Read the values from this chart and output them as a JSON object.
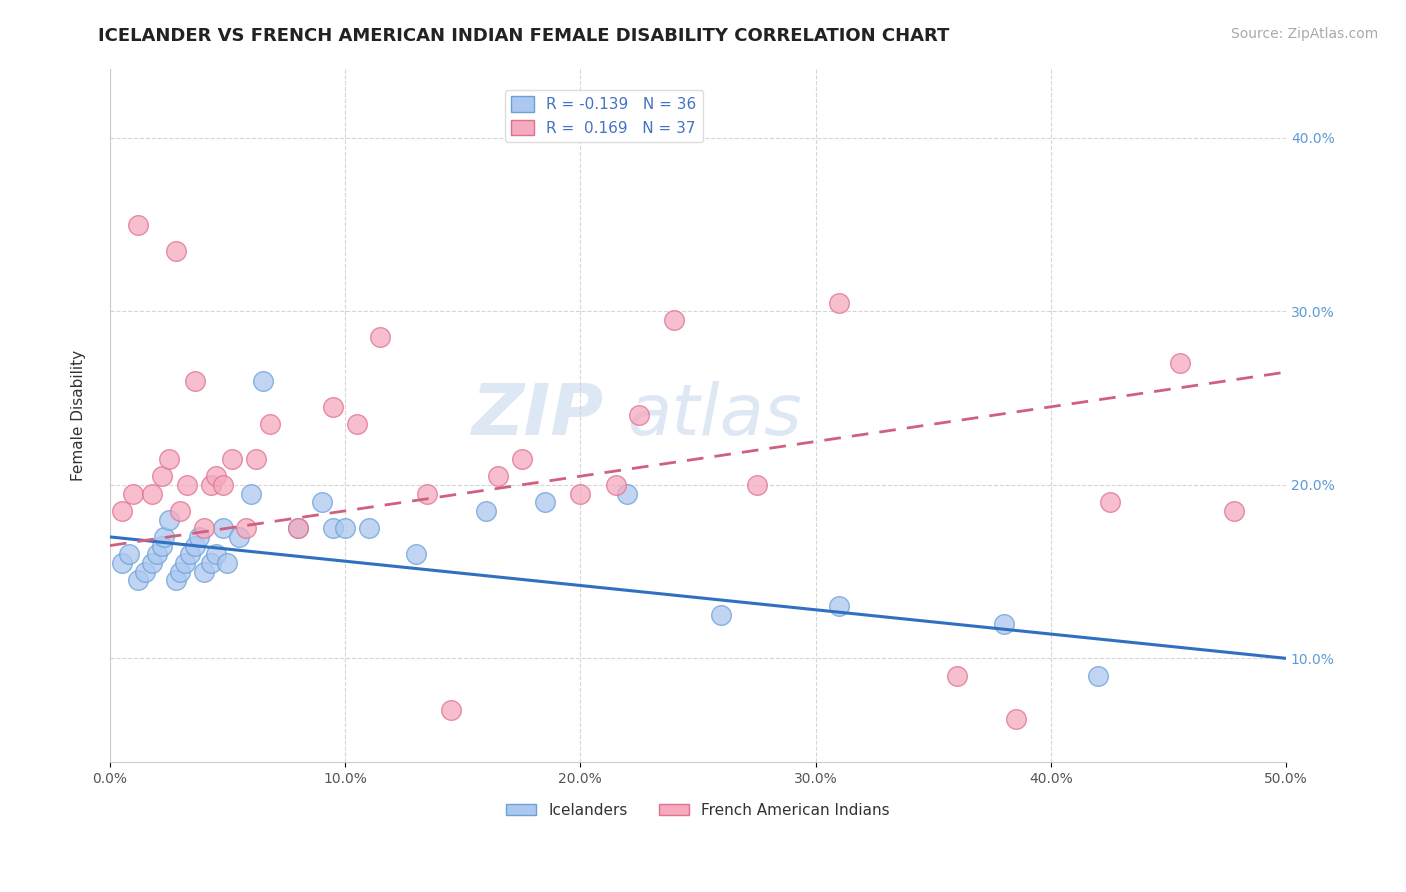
{
  "title": "ICELANDER VS FRENCH AMERICAN INDIAN FEMALE DISABILITY CORRELATION CHART",
  "source": "Source: ZipAtlas.com",
  "ylabel": "Female Disability",
  "xlim": [
    0.0,
    0.5
  ],
  "ylim": [
    0.04,
    0.44
  ],
  "xticks": [
    0.0,
    0.1,
    0.2,
    0.3,
    0.4,
    0.5
  ],
  "xtick_labels": [
    "0.0%",
    "10.0%",
    "20.0%",
    "30.0%",
    "40.0%",
    "50.0%"
  ],
  "yticks": [
    0.1,
    0.2,
    0.3,
    0.4
  ],
  "ytick_labels": [
    "10.0%",
    "20.0%",
    "30.0%",
    "40.0%"
  ],
  "legend_r1": "R = -0.139",
  "legend_n1": "N = 36",
  "legend_r2": "R =  0.169",
  "legend_n2": "N = 37",
  "icelander_color": "#adc8f0",
  "french_color": "#f5aabe",
  "icelander_edge_color": "#6aa0d8",
  "french_edge_color": "#e07090",
  "icelander_line_color": "#3070c0",
  "french_line_color": "#d06080",
  "background_color": "#ffffff",
  "grid_color": "#cccccc",
  "icelander_scatter_x": [
    0.005,
    0.008,
    0.012,
    0.015,
    0.018,
    0.02,
    0.022,
    0.023,
    0.025,
    0.028,
    0.03,
    0.032,
    0.034,
    0.036,
    0.038,
    0.04,
    0.043,
    0.045,
    0.048,
    0.05,
    0.055,
    0.06,
    0.065,
    0.08,
    0.09,
    0.095,
    0.1,
    0.11,
    0.13,
    0.16,
    0.185,
    0.22,
    0.26,
    0.31,
    0.38,
    0.42
  ],
  "icelander_scatter_y": [
    0.155,
    0.16,
    0.145,
    0.15,
    0.155,
    0.16,
    0.165,
    0.17,
    0.18,
    0.145,
    0.15,
    0.155,
    0.16,
    0.165,
    0.17,
    0.15,
    0.155,
    0.16,
    0.175,
    0.155,
    0.17,
    0.195,
    0.26,
    0.175,
    0.19,
    0.175,
    0.175,
    0.175,
    0.16,
    0.185,
    0.19,
    0.195,
    0.125,
    0.13,
    0.12,
    0.09
  ],
  "french_scatter_x": [
    0.005,
    0.01,
    0.012,
    0.018,
    0.022,
    0.025,
    0.028,
    0.03,
    0.033,
    0.036,
    0.04,
    0.043,
    0.045,
    0.048,
    0.052,
    0.058,
    0.062,
    0.068,
    0.08,
    0.095,
    0.105,
    0.115,
    0.135,
    0.145,
    0.165,
    0.175,
    0.2,
    0.215,
    0.225,
    0.24,
    0.275,
    0.31,
    0.36,
    0.385,
    0.425,
    0.455,
    0.478
  ],
  "french_scatter_y": [
    0.185,
    0.195,
    0.35,
    0.195,
    0.205,
    0.215,
    0.335,
    0.185,
    0.2,
    0.26,
    0.175,
    0.2,
    0.205,
    0.2,
    0.215,
    0.175,
    0.215,
    0.235,
    0.175,
    0.245,
    0.235,
    0.285,
    0.195,
    0.07,
    0.205,
    0.215,
    0.195,
    0.2,
    0.24,
    0.295,
    0.2,
    0.305,
    0.09,
    0.065,
    0.19,
    0.27,
    0.185
  ],
  "icelander_line_y_start": 0.17,
  "icelander_line_y_end": 0.1,
  "french_line_y_start": 0.165,
  "french_line_y_end": 0.265,
  "title_fontsize": 13,
  "axis_label_fontsize": 11,
  "tick_fontsize": 10,
  "legend_fontsize": 11,
  "source_fontsize": 10,
  "watermark1": "ZIP",
  "watermark2": "atlas"
}
